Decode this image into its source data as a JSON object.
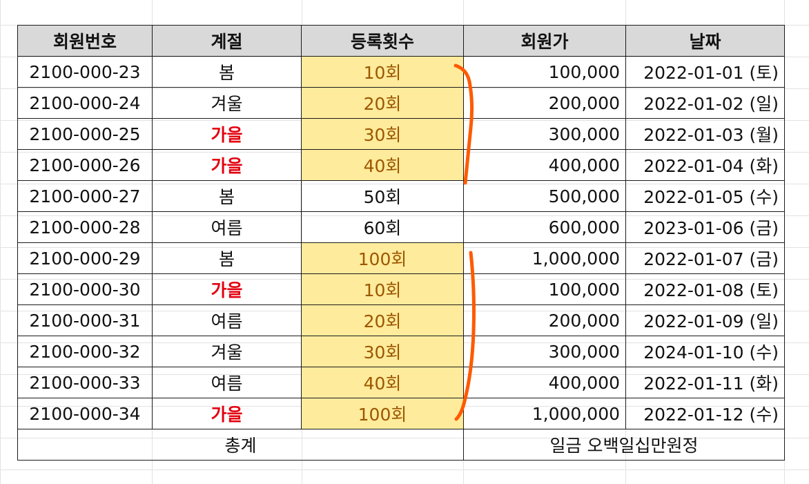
{
  "table": {
    "headers": [
      "회원번호",
      "계절",
      "등록횟수",
      "회원가",
      "날짜"
    ],
    "rows": [
      {
        "id": "2100-000-23",
        "season": "봄",
        "count": "10회",
        "price": "100,000",
        "date": "2022-01-01 (토)",
        "season_red": false,
        "count_highlight": true
      },
      {
        "id": "2100-000-24",
        "season": "겨울",
        "count": "20회",
        "price": "200,000",
        "date": "2022-01-02 (일)",
        "season_red": false,
        "count_highlight": true
      },
      {
        "id": "2100-000-25",
        "season": "가을",
        "count": "30회",
        "price": "300,000",
        "date": "2022-01-03 (월)",
        "season_red": true,
        "count_highlight": true
      },
      {
        "id": "2100-000-26",
        "season": "가을",
        "count": "40회",
        "price": "400,000",
        "date": "2022-01-04 (화)",
        "season_red": true,
        "count_highlight": true
      },
      {
        "id": "2100-000-27",
        "season": "봄",
        "count": "50회",
        "price": "500,000",
        "date": "2022-01-05 (수)",
        "season_red": false,
        "count_highlight": false
      },
      {
        "id": "2100-000-28",
        "season": "여름",
        "count": "60회",
        "price": "600,000",
        "date": "2023-01-06 (금)",
        "season_red": false,
        "count_highlight": false
      },
      {
        "id": "2100-000-29",
        "season": "봄",
        "count": "100회",
        "price": "1,000,000",
        "date": "2022-01-07 (금)",
        "season_red": false,
        "count_highlight": true
      },
      {
        "id": "2100-000-30",
        "season": "가을",
        "count": "10회",
        "price": "100,000",
        "date": "2022-01-08 (토)",
        "season_red": true,
        "count_highlight": true
      },
      {
        "id": "2100-000-31",
        "season": "여름",
        "count": "20회",
        "price": "200,000",
        "date": "2022-01-09 (일)",
        "season_red": false,
        "count_highlight": true
      },
      {
        "id": "2100-000-32",
        "season": "겨울",
        "count": "30회",
        "price": "300,000",
        "date": "2024-01-10 (수)",
        "season_red": false,
        "count_highlight": true
      },
      {
        "id": "2100-000-33",
        "season": "여름",
        "count": "40회",
        "price": "400,000",
        "date": "2022-01-11 (화)",
        "season_red": false,
        "count_highlight": true
      },
      {
        "id": "2100-000-34",
        "season": "가을",
        "count": "100회",
        "price": "1,000,000",
        "date": "2022-01-12 (수)",
        "season_red": true,
        "count_highlight": true
      }
    ],
    "footer": {
      "label": "총계",
      "value": "일금 오백일십만원정"
    }
  },
  "colors": {
    "header_bg": "#d9d9d9",
    "highlight_bg": "#ffeb9c",
    "highlight_text": "#9c5700",
    "red_text": "#e3000f",
    "bracket_stroke": "#ff5a00"
  },
  "annotations": {
    "bracket_groups": [
      [
        1,
        4
      ],
      [
        7,
        12
      ]
    ]
  }
}
